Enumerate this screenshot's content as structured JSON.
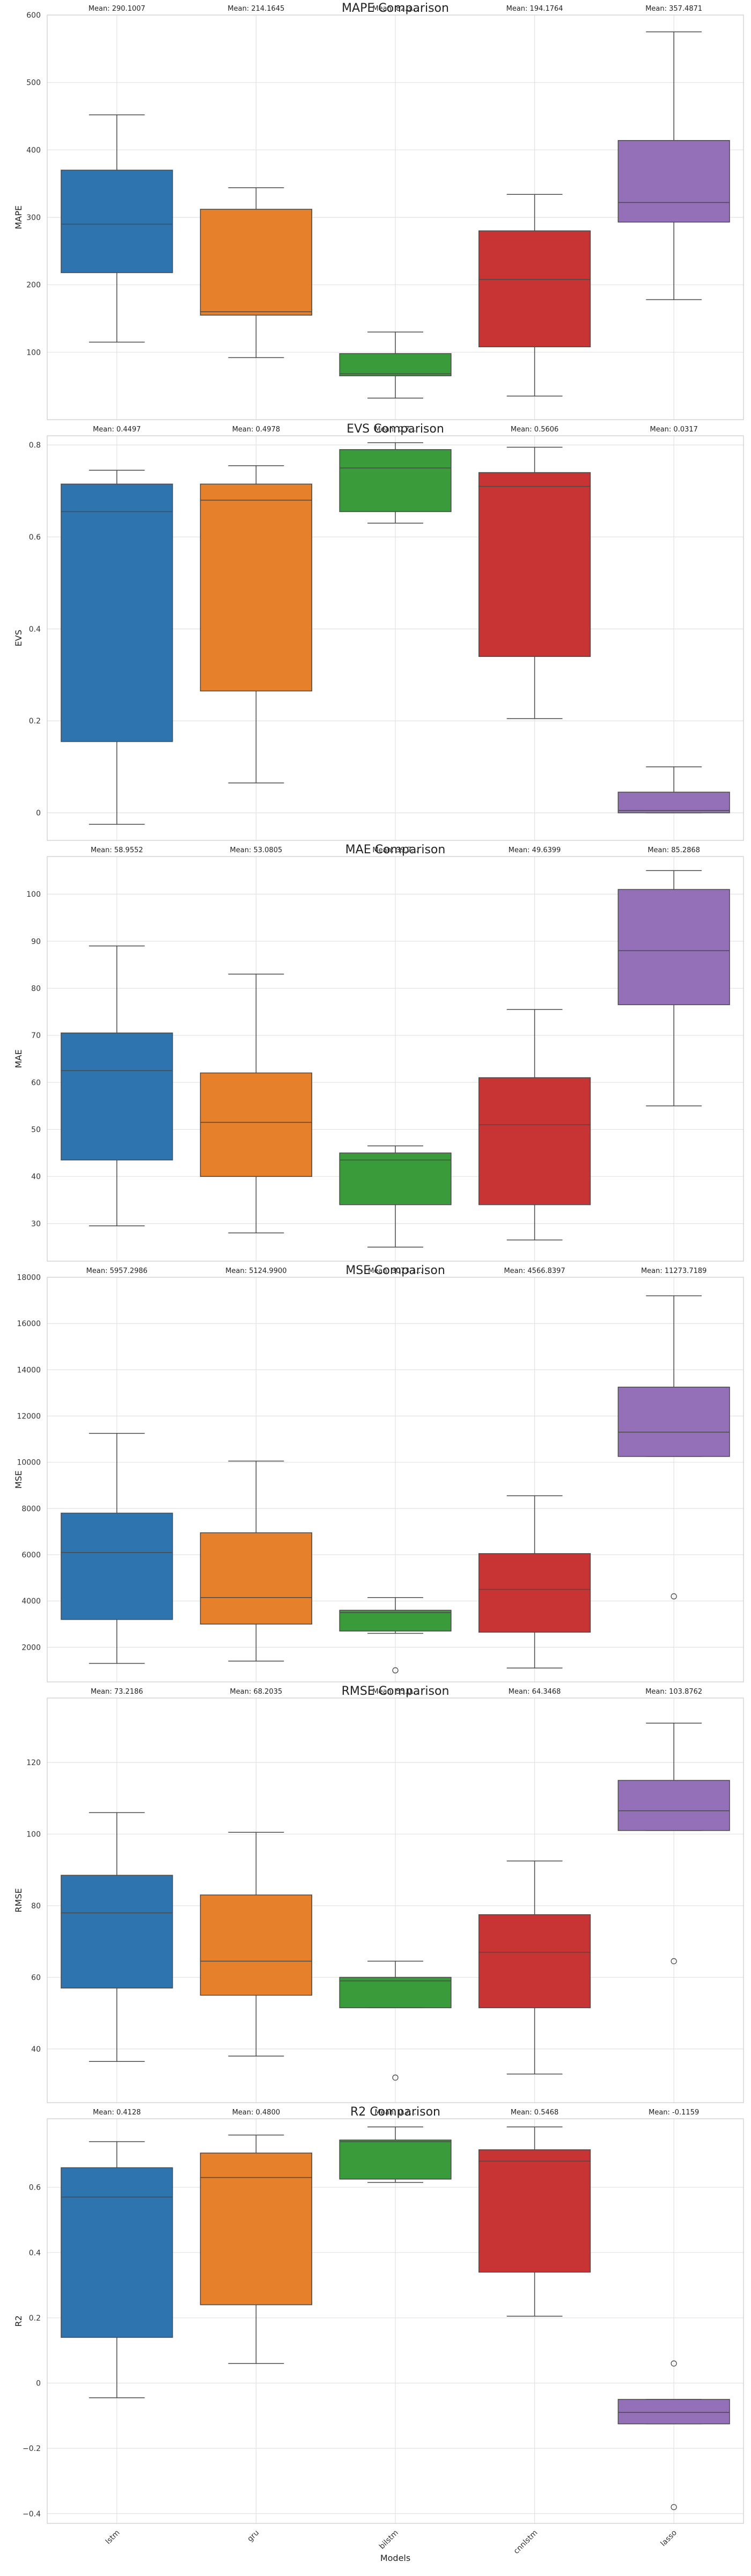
{
  "figure": {
    "xlabel": "Models",
    "categories": [
      "lstm",
      "gru",
      "bilstm",
      "cnnlstm",
      "lasso"
    ],
    "colors": [
      "#2e75b0",
      "#e7802b",
      "#3a9b3a",
      "#c83434",
      "#9370b8"
    ]
  },
  "chart_data": [
    {
      "type": "box",
      "title": "MAPE Comparison",
      "ylabel": "MAPE",
      "ylim": [
        0,
        600
      ],
      "yticks": [
        100,
        200,
        300,
        400,
        500,
        600
      ],
      "grid": true,
      "means": [
        "Mean: 290.1007",
        "Mean: 214.1645",
        "Mean: 82.3...",
        "Mean: 194.1764",
        "Mean: 357.4871"
      ],
      "boxes": [
        {
          "whislo": 115,
          "q1": 218,
          "med": 290,
          "q3": 370,
          "whishi": 452,
          "fliers": []
        },
        {
          "whislo": 92,
          "q1": 155,
          "med": 160,
          "q3": 312,
          "whishi": 344,
          "fliers": []
        },
        {
          "whislo": 32,
          "q1": 65,
          "med": 68,
          "q3": 98,
          "whishi": 130,
          "fliers": []
        },
        {
          "whislo": 35,
          "q1": 108,
          "med": 208,
          "q3": 280,
          "whishi": 334,
          "fliers": []
        },
        {
          "whislo": 178,
          "q1": 293,
          "med": 322,
          "q3": 414,
          "whishi": 575,
          "fliers": []
        }
      ]
    },
    {
      "type": "box",
      "title": "EVS Comparison",
      "ylabel": "EVS",
      "ylim": [
        -0.06,
        0.82
      ],
      "yticks": [
        0.0,
        0.2,
        0.4,
        0.6,
        0.8
      ],
      "grid": true,
      "means": [
        "Mean: 0.4497",
        "Mean: 0.4978",
        "Mean: 0.7...",
        "Mean: 0.5606",
        "Mean: 0.0317"
      ],
      "boxes": [
        {
          "whislo": -0.025,
          "q1": 0.155,
          "med": 0.655,
          "q3": 0.715,
          "whishi": 0.745,
          "fliers": []
        },
        {
          "whislo": 0.065,
          "q1": 0.265,
          "med": 0.68,
          "q3": 0.715,
          "whishi": 0.755,
          "fliers": []
        },
        {
          "whislo": 0.63,
          "q1": 0.655,
          "med": 0.75,
          "q3": 0.79,
          "whishi": 0.805,
          "fliers": []
        },
        {
          "whislo": 0.205,
          "q1": 0.34,
          "med": 0.71,
          "q3": 0.74,
          "whishi": 0.795,
          "fliers": []
        },
        {
          "whislo": 0.0,
          "q1": 0.0,
          "med": 0.005,
          "q3": 0.045,
          "whishi": 0.1,
          "fliers": []
        }
      ]
    },
    {
      "type": "box",
      "title": "MAE Comparison",
      "ylabel": "MAE",
      "ylim": [
        22,
        108
      ],
      "yticks": [
        30,
        40,
        50,
        60,
        70,
        80,
        90,
        100
      ],
      "grid": true,
      "means": [
        "Mean: 58.9552",
        "Mean: 53.0805",
        "Mean: 39.7...",
        "Mean: 49.6399",
        "Mean: 85.2868"
      ],
      "boxes": [
        {
          "whislo": 29.5,
          "q1": 43.5,
          "med": 62.5,
          "q3": 70.5,
          "whishi": 89.0,
          "fliers": []
        },
        {
          "whislo": 28.0,
          "q1": 40.0,
          "med": 51.5,
          "q3": 62.0,
          "whishi": 83.0,
          "fliers": []
        },
        {
          "whislo": 25.0,
          "q1": 34.0,
          "med": 43.5,
          "q3": 45.0,
          "whishi": 46.5,
          "fliers": []
        },
        {
          "whislo": 26.5,
          "q1": 34.0,
          "med": 51.0,
          "q3": 61.0,
          "whishi": 75.5,
          "fliers": []
        },
        {
          "whislo": 55.0,
          "q1": 76.5,
          "med": 88.0,
          "q3": 101.0,
          "whishi": 105.0,
          "fliers": []
        }
      ]
    },
    {
      "type": "box",
      "title": "MSE Comparison",
      "ylabel": "MSE",
      "ylim": [
        500,
        18000
      ],
      "yticks": [
        2000,
        4000,
        6000,
        8000,
        10000,
        12000,
        14000,
        16000,
        18000
      ],
      "grid": true,
      "means": [
        "Mean: 5957.2986",
        "Mean: 5124.9900",
        "Mean: 3073.1...",
        "Mean: 4566.8397",
        "Mean: 11273.7189"
      ],
      "boxes": [
        {
          "whislo": 1300,
          "q1": 3200,
          "med": 6100,
          "q3": 7800,
          "whishi": 11250,
          "fliers": []
        },
        {
          "whislo": 1400,
          "q1": 3000,
          "med": 4150,
          "q3": 6950,
          "whishi": 10050,
          "fliers": []
        },
        {
          "whislo": 2600,
          "q1": 2700,
          "med": 3500,
          "q3": 3600,
          "whishi": 4150,
          "fliers": [
            1000
          ]
        },
        {
          "whislo": 1100,
          "q1": 2650,
          "med": 4500,
          "q3": 6050,
          "whishi": 8550,
          "fliers": []
        },
        {
          "whislo": 10250,
          "q1": 10250,
          "med": 11300,
          "q3": 13250,
          "whishi": 17200,
          "fliers": [
            4200
          ]
        }
      ]
    },
    {
      "type": "box",
      "title": "RMSE Comparison",
      "ylabel": "RMSE",
      "ylim": [
        25,
        138
      ],
      "yticks": [
        40,
        60,
        80,
        100,
        120
      ],
      "grid": true,
      "means": [
        "Mean: 73.2186",
        "Mean: 68.2035",
        "Mean: 55.0...",
        "Mean: 64.3468",
        "Mean: 103.8762"
      ],
      "boxes": [
        {
          "whislo": 36.5,
          "q1": 57.0,
          "med": 78.0,
          "q3": 88.5,
          "whishi": 106.0,
          "fliers": []
        },
        {
          "whislo": 38.0,
          "q1": 55.0,
          "med": 64.5,
          "q3": 83.0,
          "whishi": 100.5,
          "fliers": []
        },
        {
          "whislo": 51.5,
          "q1": 51.5,
          "med": 59.0,
          "q3": 60.0,
          "whishi": 64.5,
          "fliers": [
            32.0
          ]
        },
        {
          "whislo": 33.0,
          "q1": 51.5,
          "med": 67.0,
          "q3": 77.5,
          "whishi": 92.5,
          "fliers": []
        },
        {
          "whislo": 101.0,
          "q1": 101.0,
          "med": 106.5,
          "q3": 115.0,
          "whishi": 131.0,
          "fliers": [
            64.5
          ]
        }
      ]
    },
    {
      "type": "box",
      "title": "R2 Comparison",
      "ylabel": "R2",
      "ylim": [
        -0.43,
        0.81
      ],
      "yticks": [
        -0.4,
        -0.2,
        0.0,
        0.2,
        0.4,
        0.6
      ],
      "grid": true,
      "means": [
        "Mean: 0.4128",
        "Mean: 0.4800",
        "Mean: 0.7...",
        "Mean: 0.5468",
        "Mean: -0.1159"
      ],
      "boxes": [
        {
          "whislo": -0.045,
          "q1": 0.14,
          "med": 0.57,
          "q3": 0.66,
          "whishi": 0.74,
          "fliers": []
        },
        {
          "whislo": 0.06,
          "q1": 0.24,
          "med": 0.63,
          "q3": 0.705,
          "whishi": 0.76,
          "fliers": []
        },
        {
          "whislo": 0.615,
          "q1": 0.625,
          "med": 0.74,
          "q3": 0.745,
          "whishi": 0.785,
          "fliers": []
        },
        {
          "whislo": 0.205,
          "q1": 0.34,
          "med": 0.68,
          "q3": 0.715,
          "whishi": 0.785,
          "fliers": []
        },
        {
          "whislo": -0.125,
          "q1": -0.125,
          "med": -0.09,
          "q3": -0.05,
          "whishi": -0.05,
          "fliers": [
            0.06,
            -0.38
          ]
        }
      ]
    }
  ]
}
